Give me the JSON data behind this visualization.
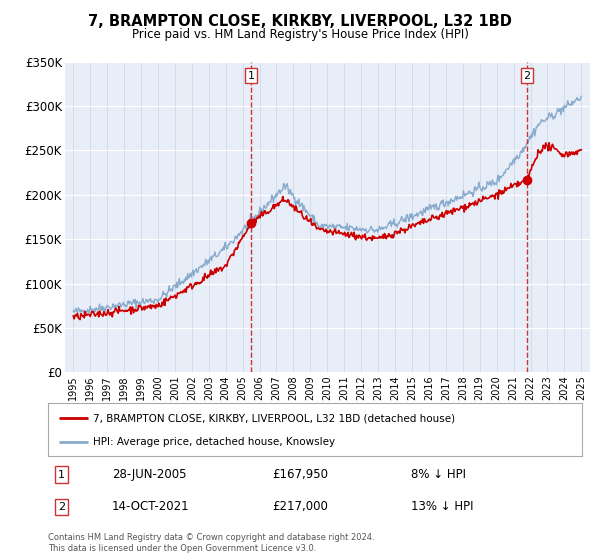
{
  "title": "7, BRAMPTON CLOSE, KIRKBY, LIVERPOOL, L32 1BD",
  "subtitle": "Price paid vs. HM Land Registry's House Price Index (HPI)",
  "background_color": "#ffffff",
  "plot_background": "#e8eef8",
  "legend_label_red": "7, BRAMPTON CLOSE, KIRKBY, LIVERPOOL, L32 1BD (detached house)",
  "legend_label_blue": "HPI: Average price, detached house, Knowsley",
  "annotation1_date": "28-JUN-2005",
  "annotation1_price": "£167,950",
  "annotation1_hpi": "8% ↓ HPI",
  "annotation2_date": "14-OCT-2021",
  "annotation2_price": "£217,000",
  "annotation2_hpi": "13% ↓ HPI",
  "vline1_year": 2005.5,
  "vline2_year": 2021.79,
  "marker1_year": 2005.5,
  "marker1_value": 167950,
  "marker2_year": 2021.79,
  "marker2_value": 217000,
  "red_color": "#cc0000",
  "blue_color": "#88aacc",
  "vline_color": "#cc3333",
  "ylim_max": 350000,
  "ylim_min": 0,
  "footer": "Contains HM Land Registry data © Crown copyright and database right 2024.\nThis data is licensed under the Open Government Licence v3.0."
}
